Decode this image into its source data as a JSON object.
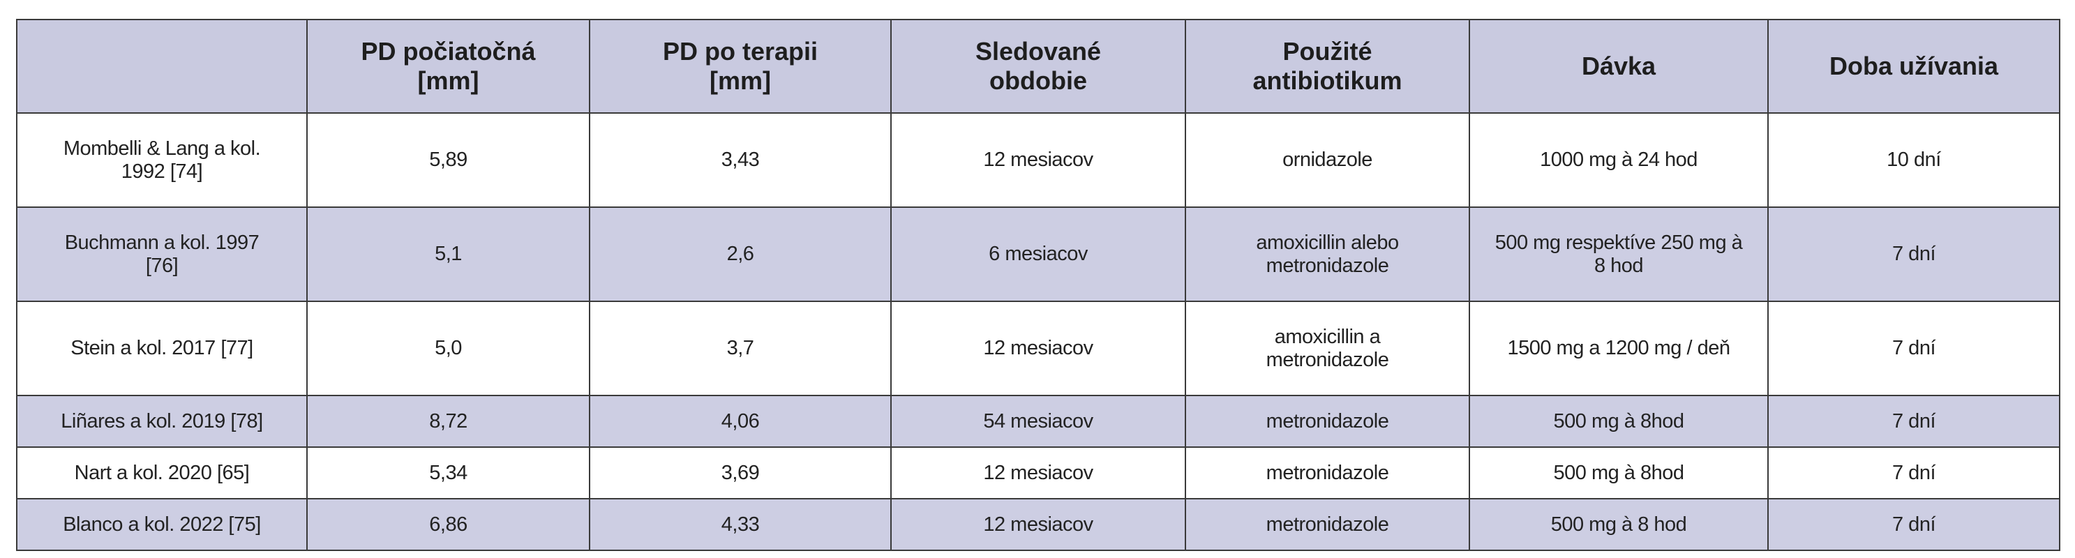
{
  "table": {
    "header": [
      "PD počiatočná [mm]",
      "PD po terapii [mm]",
      "Sledované obdobie",
      "Použité antibiotikum",
      "Dávka",
      "Doba užívania"
    ],
    "rows": [
      [
        "Mombelli & Lang a kol. 1992 [74]",
        "5,89",
        "3,43",
        "12 mesiacov",
        "ornidazole",
        "1000 mg à 24 hod",
        "10 dní"
      ],
      [
        "Buchmann a kol. 1997 [76]",
        "5,1",
        "2,6",
        "6 mesiacov",
        "amoxicillin alebo metronidazole",
        "500 mg respektíve 250 mg à 8 hod",
        "7 dní"
      ],
      [
        "Stein a kol. 2017 [77]",
        "5,0",
        "3,7",
        "12 mesiacov",
        "amoxicillin a metronidazole",
        "1500 mg a 1200 mg / deň",
        "7 dní"
      ],
      [
        "Liñares a kol. 2019 [78]",
        "8,72",
        "4,06",
        "54 mesiacov",
        "metronidazole",
        "500 mg à 8hod",
        "7 dní"
      ],
      [
        "Nart a kol. 2020 [65]",
        "5,34",
        "3,69",
        "12 mesiacov",
        "metronidazole",
        "500 mg à 8hod",
        "7 dní"
      ],
      [
        "Blanco a kol. 2022 [75]",
        "6,86",
        "4,33",
        "12 mesiacov",
        "metronidazole",
        "500 mg à 8 hod",
        "7 dní"
      ]
    ]
  }
}
